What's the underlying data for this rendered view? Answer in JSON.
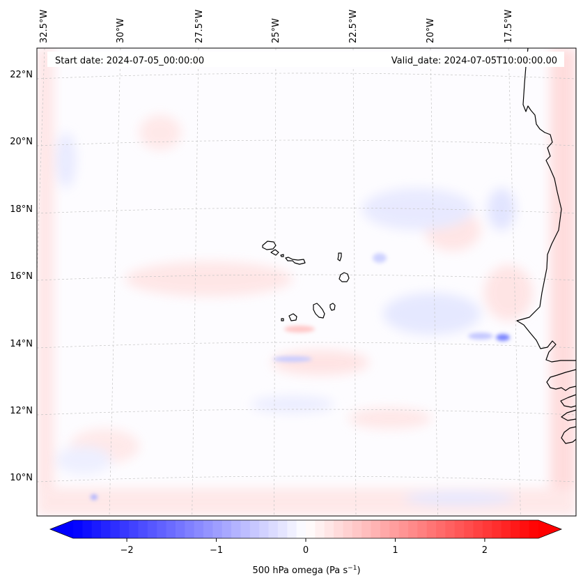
{
  "map": {
    "start_label": "Start date: 2024-07-05_00:00:00",
    "valid_label": "Valid_date: 2024-07-05T10:00:00.00",
    "lon_labels": [
      "32.5°W",
      "30°W",
      "27.5°W",
      "25°W",
      "22.5°W",
      "20°W",
      "17.5°W"
    ],
    "lat_labels": [
      "22°N",
      "20°N",
      "18°N",
      "16°N",
      "14°N",
      "12°N",
      "10°N"
    ]
  },
  "colorbar": {
    "label_main": "500 hPa omega (Pa s",
    "label_exp": "−1",
    "label_close": ")",
    "ticks": [
      "−2",
      "−1",
      "0",
      "1",
      "2"
    ],
    "range": [
      -2.6,
      2.6
    ],
    "colors": {
      "negative": "#0000ff",
      "zero": "#ffffff",
      "positive": "#ff0000"
    }
  },
  "colors": {
    "coastline": "#000000",
    "gridline": "#b9b9b9",
    "field_positive": "#ffd6d6",
    "field_negative": "#d9dcff"
  }
}
